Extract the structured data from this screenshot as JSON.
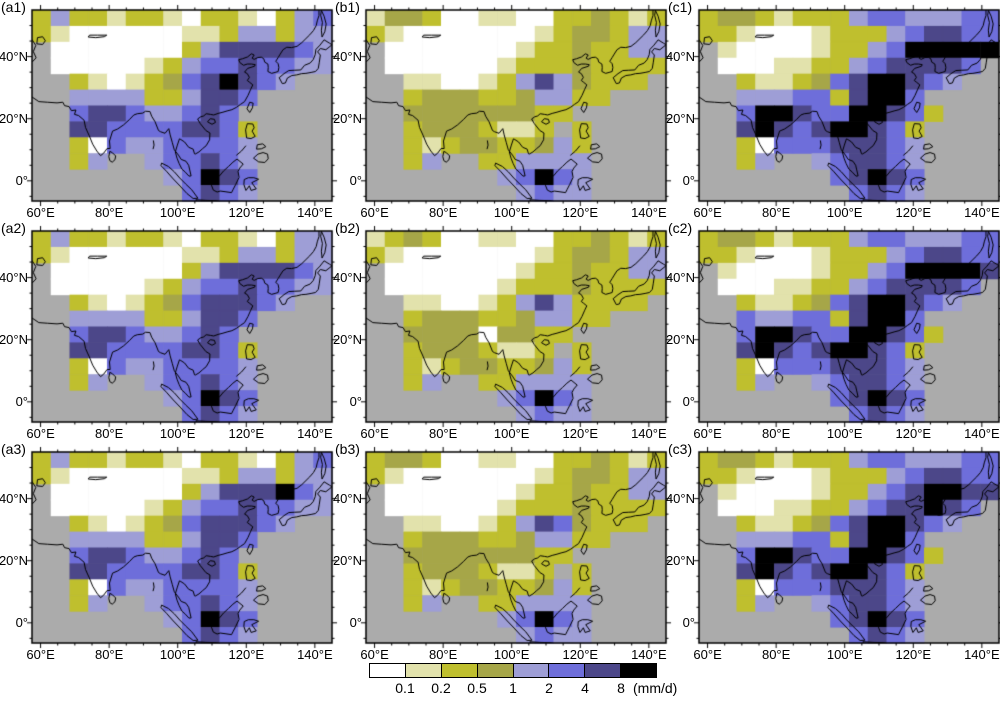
{
  "figure": {
    "description": "3x3 multi-panel filled-contour maps of precipitation over Asia",
    "panel_labels_order": [
      "(a1)",
      "(b1)",
      "(c1)",
      "(a2)",
      "(b2)",
      "(c2)",
      "(a3)",
      "(b3)",
      "(c3)"
    ]
  },
  "chart_data": {
    "type": "heatmap",
    "subtype": "filled-contour precipitation maps (lon-lat), 3 columns x 3 rows of panels",
    "unit": "mm/d",
    "levels": [
      0.1,
      0.2,
      0.5,
      1,
      2,
      4,
      8
    ],
    "level_colors": [
      "#ffffff",
      "#e2e2ac",
      "#bfbf2e",
      "#a6a648",
      "#9e9ed6",
      "#6e6eda",
      "#4c4789",
      "#000000"
    ],
    "no_data_color": "#ababab",
    "lon_range_deg_e": [
      57.5,
      145
    ],
    "lat_range_deg_n": [
      -6.5,
      55
    ],
    "x_tick_labels": [
      "60°E",
      "80°E",
      "100°E",
      "120°E",
      "140°E"
    ],
    "x_tick_lons": [
      60,
      80,
      100,
      120,
      140
    ],
    "y_tick_labels": [
      "40°N",
      "20°N",
      "0°"
    ],
    "y_tick_lats": [
      40,
      20,
      0
    ],
    "minor_tick_interval_deg": 5,
    "colorbar": {
      "tick_labels": [
        "0.1",
        "0.2",
        "0.5",
        "1",
        "2",
        "4",
        "8"
      ],
      "unit_label": "(mm/d)"
    },
    "grid_encoding": "Each panel grid: 12 rows (north to south, 55N to -6.5N) x 16 cols (57.5E to 145E). Chars 0-7 = precipitation class (<0.1, 0.1-0.2, 0.2-0.5, 0.5-1, 1-2, 2-4, 4-8, >8 mm/d); '.' = no data (gray).",
    "panels": [
      {
        "label": "(a1)",
        "grid": [
          "2422122102210245",
          "2100000011244244",
          ".000000024666654",
          ".000001245565544",
          "..210123567654..",
          "..4444224665....",
          "..566544565.....",
          "..6655556652....",
          "..2054455554....",
          "..24..455654....",
          ".......45765....",
          "........5654...."
        ]
      },
      {
        "label": "(b1)",
        "grid": [
          "1332001100223212",
          "2100000001233244",
          ".000000012232244",
          ".000000122232222",
          "..1100124643222.",
          "..23332234422...",
          "..333333322.....",
          "..23332112.2....",
          "..2123322342....",
          "..24..224444....",
          ".......45754....",
          "........4544...."
        ]
      },
      {
        "label": "(c1)",
        "grid": [
          "2332122245544455",
          "2210001222456655",
          ".100001224577777",
          ".00011224566665.",
          "..211235677654..",
          "..4445526775....",
          "..57765577652...",
          "..6765677652....",
          "..2055566654....",
          "..24..456654....",
          ".......56765....",
          "........5654...."
        ]
      },
      {
        "label": "(a2)",
        "grid": [
          "2422122102210244",
          "2100000011244244",
          ".000000024666654",
          ".000001245565544",
          "..210123566654..",
          "..4444224665....",
          "..566544565.....",
          "..6655556652....",
          "..2054455554....",
          "..24..455654....",
          ".......45765....",
          "........5654...."
        ]
      },
      {
        "label": "(b2)",
        "grid": [
          "1232001100223212",
          "2100000001233244",
          ".000000012232244",
          ".000000122232222",
          "..1100124642222.",
          "..23332234422...",
          "..333303322.....",
          "..23332112.2....",
          "..2123322342....",
          "..24..224444....",
          ".......45754....",
          "........4544...."
        ]
      },
      {
        "label": "(c2)",
        "grid": [
          "2332122245544455",
          "2210001222456655",
          ".100001224577776",
          ".00011224566665.",
          "..211235677654..",
          "..5445526775....",
          "..57765577652...",
          "..6765677652....",
          "..2055566654....",
          "..24..456654....",
          ".......56765....",
          "........5654...."
        ]
      },
      {
        "label": "(a3)",
        "grid": [
          "2422122102210245",
          "2100000011244244",
          ".000000024666754",
          ".000001245565544",
          "..210123566654..",
          "..4444224665....",
          "..566544565.....",
          "..6655556652....",
          "..2054455554....",
          "..24..455654....",
          ".......45765....",
          "........5654...."
        ]
      },
      {
        "label": "(b3)",
        "grid": [
          "2332001100223212",
          "2100000001233244",
          ".000000012232244",
          ".000000122232222",
          "..1100124653222.",
          "..23332234422...",
          "..333333322.....",
          "..23332112.2....",
          "..2123322342....",
          "..24..224444....",
          ".......45754....",
          "........4544...."
        ]
      },
      {
        "label": "(c3)",
        "grid": [
          "2332122245544455",
          "2210001222456655",
          ".100001224567766",
          ".00011224566765.",
          "..211235677654..",
          "..4445526775....",
          "..57765577652...",
          "..6765677652....",
          "..2055566654....",
          "..24..456654....",
          ".......56765....",
          "........5654...."
        ]
      }
    ]
  }
}
